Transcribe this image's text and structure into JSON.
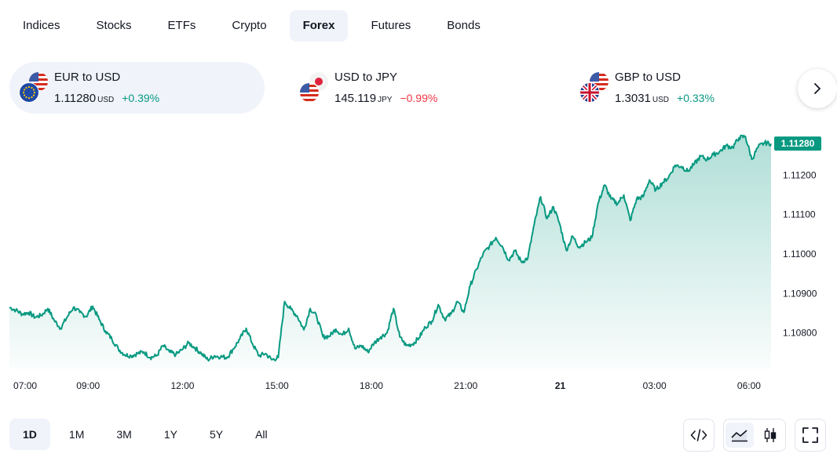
{
  "tabs": [
    {
      "label": "Indices",
      "active": false
    },
    {
      "label": "Stocks",
      "active": false
    },
    {
      "label": "ETFs",
      "active": false
    },
    {
      "label": "Crypto",
      "active": false
    },
    {
      "label": "Forex",
      "active": true
    },
    {
      "label": "Futures",
      "active": false
    },
    {
      "label": "Bonds",
      "active": false
    }
  ],
  "tickers": [
    {
      "name": "EUR to USD",
      "price": "1.11280",
      "currency": "USD",
      "change": "+0.39%",
      "direction": "up",
      "active": true
    },
    {
      "name": "USD to JPY",
      "price": "145.119",
      "currency": "JPY",
      "change": "−0.99%",
      "direction": "down",
      "active": false
    },
    {
      "name": "GBP to USD",
      "price": "1.3031",
      "currency": "USD",
      "change": "+0.33%",
      "direction": "up",
      "active": false
    }
  ],
  "next_button_icon": "chevron-right-icon",
  "chart_data": {
    "type": "area",
    "series": [
      {
        "values": [
          1.10865,
          1.10858,
          1.10848,
          1.10852,
          1.1084,
          1.10845,
          1.10862,
          1.10832,
          1.10812,
          1.1084,
          1.10865,
          1.10852,
          1.10842,
          1.10868,
          1.10835,
          1.10805,
          1.10785,
          1.1076,
          1.10745,
          1.10742,
          1.10748,
          1.10752,
          1.10738,
          1.10742,
          1.10768,
          1.10752,
          1.10745,
          1.10758,
          1.10775,
          1.10762,
          1.10748,
          1.10732,
          1.10742,
          1.1074,
          1.10738,
          1.1076,
          1.10785,
          1.10812,
          1.10772,
          1.10742,
          1.10748,
          1.10732,
          1.10738,
          1.1088,
          1.1086,
          1.10842,
          1.10808,
          1.10862,
          1.10842,
          1.1079,
          1.10792,
          1.1081,
          1.10795,
          1.10812,
          1.1076,
          1.10768,
          1.10752,
          1.10775,
          1.1079,
          1.108,
          1.10862,
          1.1079,
          1.10768,
          1.10772,
          1.10788,
          1.10815,
          1.1083,
          1.10872,
          1.10835,
          1.10848,
          1.1088,
          1.10852,
          1.1092,
          1.10962,
          1.11,
          1.1102,
          1.11042,
          1.1102,
          1.10985,
          1.11008,
          1.1098,
          1.1099,
          1.11075,
          1.11145,
          1.1109,
          1.1112,
          1.11075,
          1.1101,
          1.11045,
          1.11018,
          1.1103,
          1.11042,
          1.1113,
          1.11175,
          1.1114,
          1.11128,
          1.1115,
          1.11085,
          1.1114,
          1.11145,
          1.11188,
          1.11162,
          1.1118,
          1.11195,
          1.11225,
          1.11222,
          1.1121,
          1.11228,
          1.11248,
          1.1124,
          1.11252,
          1.1126,
          1.11275,
          1.1127,
          1.11295,
          1.11298,
          1.1124,
          1.11272,
          1.11282,
          1.1128
        ]
      }
    ],
    "x_start_hour": 6.5,
    "x_end_hour": 30.7,
    "x_tick_labels": [
      {
        "label": "07:00",
        "hour": 7,
        "bold": false
      },
      {
        "label": "09:00",
        "hour": 9,
        "bold": false
      },
      {
        "label": "12:00",
        "hour": 12,
        "bold": false
      },
      {
        "label": "15:00",
        "hour": 15,
        "bold": false
      },
      {
        "label": "18:00",
        "hour": 18,
        "bold": false
      },
      {
        "label": "21:00",
        "hour": 21,
        "bold": false
      },
      {
        "label": "21",
        "hour": 24,
        "bold": true
      },
      {
        "label": "03:00",
        "hour": 27,
        "bold": false
      },
      {
        "label": "06:00",
        "hour": 30,
        "bold": false
      }
    ],
    "y_tick_labels": [
      "1.10800",
      "1.10900",
      "1.11000",
      "1.11100",
      "1.11200"
    ],
    "y_ticks": [
      1.108,
      1.109,
      1.11,
      1.111,
      1.112
    ],
    "ylim": [
      1.1071,
      1.1133
    ],
    "last_value_label": "1.11280",
    "last_value": 1.1128,
    "line_color": "#089981"
  },
  "ranges": [
    {
      "label": "1D",
      "active": true
    },
    {
      "label": "1M",
      "active": false
    },
    {
      "label": "3M",
      "active": false
    },
    {
      "label": "1Y",
      "active": false
    },
    {
      "label": "5Y",
      "active": false
    },
    {
      "label": "All",
      "active": false
    }
  ],
  "tools": {
    "embed_icon": "code-icon",
    "area_icon": "area-chart-icon",
    "candle_icon": "candlestick-icon",
    "fullscreen_icon": "fullscreen-icon"
  }
}
